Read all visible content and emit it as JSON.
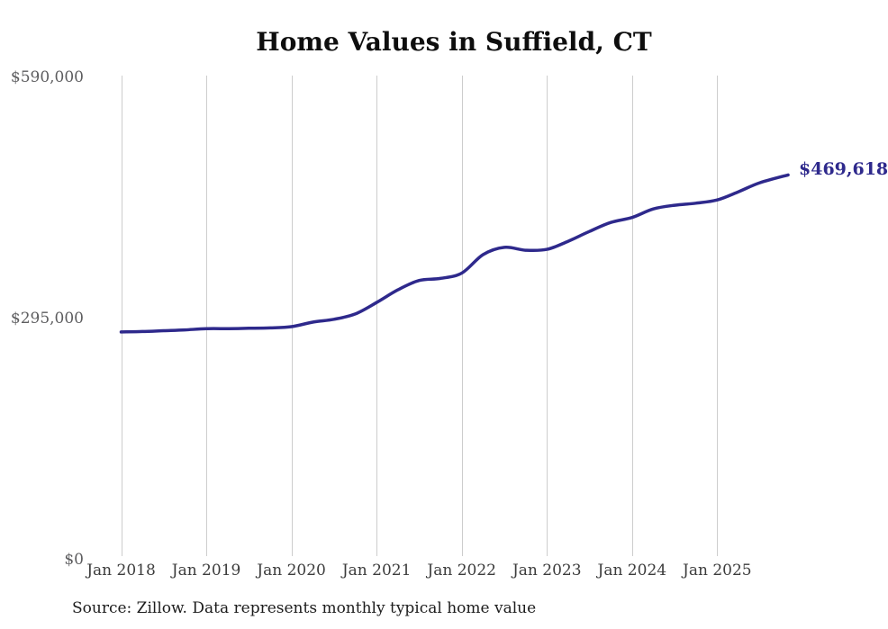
{
  "title": "Home Values in Suffield, CT",
  "end_label": "$469,618",
  "source_note": "Source: Zillow. Data represents monthly typical home value",
  "colors": {
    "line": "#2e298c",
    "grid": "#cdcdcd",
    "y_tick_label": "#5d5d5f",
    "x_tick_label": "#3c3c3c",
    "title": "#0e0e0e",
    "source": "#1c1c1c",
    "background": "#ffffff"
  },
  "y_axis": {
    "ticks": [
      "$590,000",
      "$295,000",
      "$0"
    ],
    "tick_values": [
      590000,
      295000,
      0
    ]
  },
  "x_axis": {
    "ticks": [
      "Jan 2018",
      "Jan 2019",
      "Jan 2020",
      "Jan 2021",
      "Jan 2022",
      "Jan 2023",
      "Jan 2024",
      "Jan 2025"
    ]
  },
  "chart_data": {
    "type": "line",
    "title": "Home Values in Suffield, CT",
    "series_name": "Monthly typical home value (USD)",
    "ylabel": "",
    "xlabel": "",
    "ylim": [
      0,
      590000
    ],
    "grid": "vertical-only",
    "legend": "none",
    "final_value": 469618,
    "final_value_label": "$469,618",
    "x": [
      "Jan 2018",
      "Apr 2018",
      "Jul 2018",
      "Oct 2018",
      "Jan 2019",
      "Apr 2019",
      "Jul 2019",
      "Oct 2019",
      "Jan 2020",
      "Apr 2020",
      "Jul 2020",
      "Oct 2020",
      "Jan 2021",
      "Apr 2021",
      "Jul 2021",
      "Oct 2021",
      "Jan 2022",
      "Apr 2022",
      "Jul 2022",
      "Oct 2022",
      "Jan 2023",
      "Apr 2023",
      "Jul 2023",
      "Oct 2023",
      "Jan 2024",
      "Apr 2024",
      "Jul 2024",
      "Oct 2024",
      "Jan 2025",
      "Apr 2025",
      "Jul 2025",
      "Nov 2025"
    ],
    "month_offsets": [
      0,
      3,
      6,
      9,
      12,
      15,
      18,
      21,
      24,
      27,
      30,
      33,
      36,
      39,
      42,
      45,
      48,
      51,
      54,
      57,
      60,
      63,
      66,
      69,
      72,
      75,
      78,
      81,
      84,
      87,
      90,
      94
    ],
    "values": [
      277500,
      278000,
      279000,
      280000,
      281500,
      281500,
      282000,
      282500,
      284000,
      289500,
      293000,
      299500,
      313500,
      329000,
      340500,
      343000,
      349500,
      372000,
      381000,
      377500,
      378500,
      388500,
      400500,
      411500,
      417500,
      428000,
      432500,
      435000,
      439000,
      449000,
      460000,
      469618
    ]
  }
}
